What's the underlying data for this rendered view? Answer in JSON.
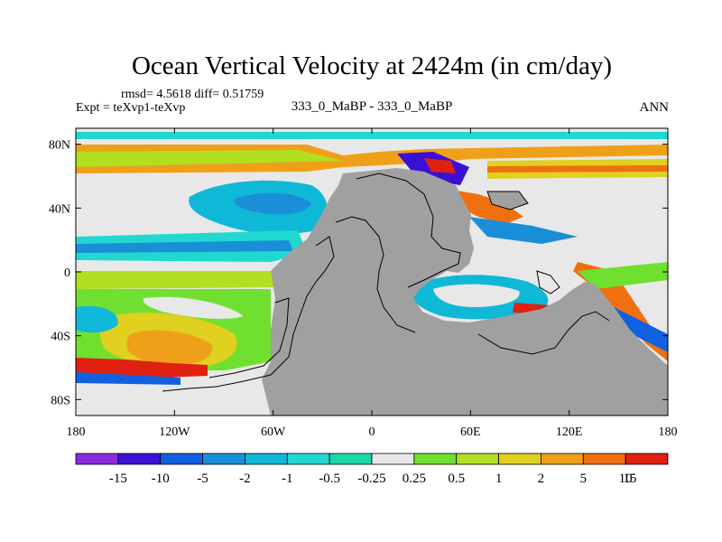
{
  "chart_data": {
    "type": "heatmap",
    "title": "Ocean Vertical Velocity at 2424m (in cm/day)",
    "stats_text": "rmsd= 4.5618 diff= 0.51759",
    "expt_text": "Expt = teXvp1-teXvp",
    "case_text": "333_0_MaBP - 333_0_MaBP",
    "season_text": "ANN",
    "x_ticks": [
      "180",
      "120W",
      "60W",
      "0",
      "60E",
      "120E",
      "180"
    ],
    "y_ticks": [
      "80N",
      "40N",
      "0",
      "40S",
      "80S"
    ],
    "xlim": [
      -180,
      180
    ],
    "ylim": [
      -90,
      90
    ],
    "colorbar_levels": [
      "-15",
      "-10",
      "-5",
      "-2",
      "-1",
      "-0.5",
      "-0.25",
      "0.25",
      "0.5",
      "1",
      "2",
      "5",
      "10",
      "15"
    ],
    "colorbar_colors": [
      "#8a2be2",
      "#3b10d6",
      "#1060e0",
      "#1a8fd8",
      "#10b8d8",
      "#20d8d0",
      "#18d8a8",
      "#e8e8e8",
      "#70e030",
      "#b0e020",
      "#e0d020",
      "#f0a018",
      "#f07010",
      "#e02010"
    ],
    "land_color": "#a0a0a0",
    "no_change_color": "#e8e8e8"
  }
}
